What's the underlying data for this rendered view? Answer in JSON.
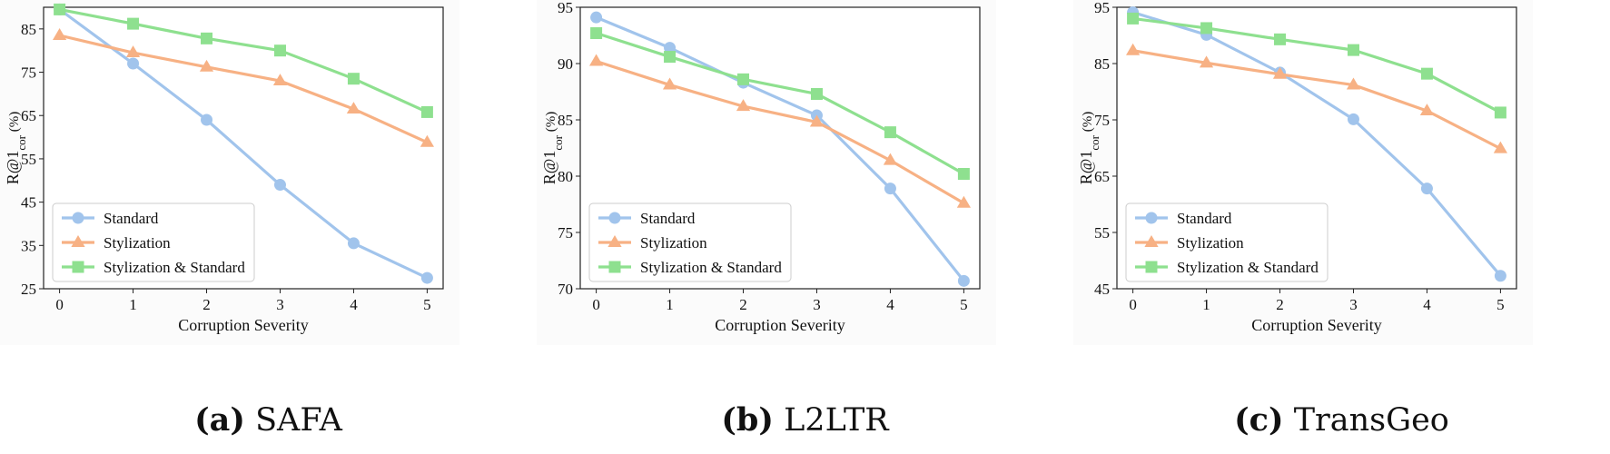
{
  "chart_data": [
    {
      "type": "line",
      "panel_tag": "(a)",
      "panel_name": "SAFA",
      "xlabel": "Corruption Severity",
      "ylabel": "R@1",
      "ylabel_sub": "cor",
      "ylabel_unit": " (%)",
      "x": [
        0,
        1,
        2,
        3,
        4,
        5
      ],
      "ylim": [
        25,
        90
      ],
      "yticks": [
        25,
        35,
        45,
        55,
        65,
        75,
        85
      ],
      "legend_position": "lower-left",
      "grid": false,
      "series": [
        {
          "name": "Standard",
          "color": "#a1c4ec",
          "marker": "circle",
          "values": [
            89.5,
            77,
            64,
            49,
            35.5,
            27.5
          ]
        },
        {
          "name": "Stylization",
          "color": "#f7b184",
          "marker": "triangle",
          "values": [
            83.5,
            79.5,
            76.2,
            73,
            66.5,
            58.8
          ]
        },
        {
          "name": "Stylization & Standard",
          "color": "#8ee08f",
          "marker": "square",
          "values": [
            89.5,
            86.2,
            82.8,
            80,
            73.5,
            65.8
          ]
        }
      ]
    },
    {
      "type": "line",
      "panel_tag": "(b)",
      "panel_name": "L2LTR",
      "xlabel": "Corruption Severity",
      "ylabel": "R@1",
      "ylabel_sub": "cor",
      "ylabel_unit": " (%)",
      "x": [
        0,
        1,
        2,
        3,
        4,
        5
      ],
      "ylim": [
        70,
        95
      ],
      "yticks": [
        70,
        75,
        80,
        85,
        90,
        95
      ],
      "legend_position": "lower-left",
      "grid": false,
      "series": [
        {
          "name": "Standard",
          "color": "#a1c4ec",
          "marker": "circle",
          "values": [
            94.1,
            91.4,
            88.3,
            85.4,
            78.9,
            70.7
          ]
        },
        {
          "name": "Stylization",
          "color": "#f7b184",
          "marker": "triangle",
          "values": [
            90.2,
            88.1,
            86.2,
            84.8,
            81.4,
            77.6
          ]
        },
        {
          "name": "Stylization & Standard",
          "color": "#8ee08f",
          "marker": "square",
          "values": [
            92.7,
            90.6,
            88.6,
            87.3,
            83.9,
            80.2
          ]
        }
      ]
    },
    {
      "type": "line",
      "panel_tag": "(c)",
      "panel_name": "TransGeo",
      "xlabel": "Corruption Severity",
      "ylabel": "R@1",
      "ylabel_sub": "cor",
      "ylabel_unit": " (%)",
      "x": [
        0,
        1,
        2,
        3,
        4,
        5
      ],
      "ylim": [
        45,
        95
      ],
      "yticks": [
        45,
        55,
        65,
        75,
        85,
        95
      ],
      "legend_position": "lower-left",
      "grid": false,
      "series": [
        {
          "name": "Standard",
          "color": "#a1c4ec",
          "marker": "circle",
          "values": [
            94.1,
            90.1,
            83.4,
            75.1,
            62.8,
            47.3
          ]
        },
        {
          "name": "Stylization",
          "color": "#f7b184",
          "marker": "triangle",
          "values": [
            87.3,
            85.1,
            83.1,
            81.2,
            76.6,
            69.9
          ]
        },
        {
          "name": "Stylization & Standard",
          "color": "#8ee08f",
          "marker": "square",
          "values": [
            93,
            91.3,
            89.3,
            87.4,
            83.2,
            76.3
          ]
        }
      ]
    }
  ]
}
